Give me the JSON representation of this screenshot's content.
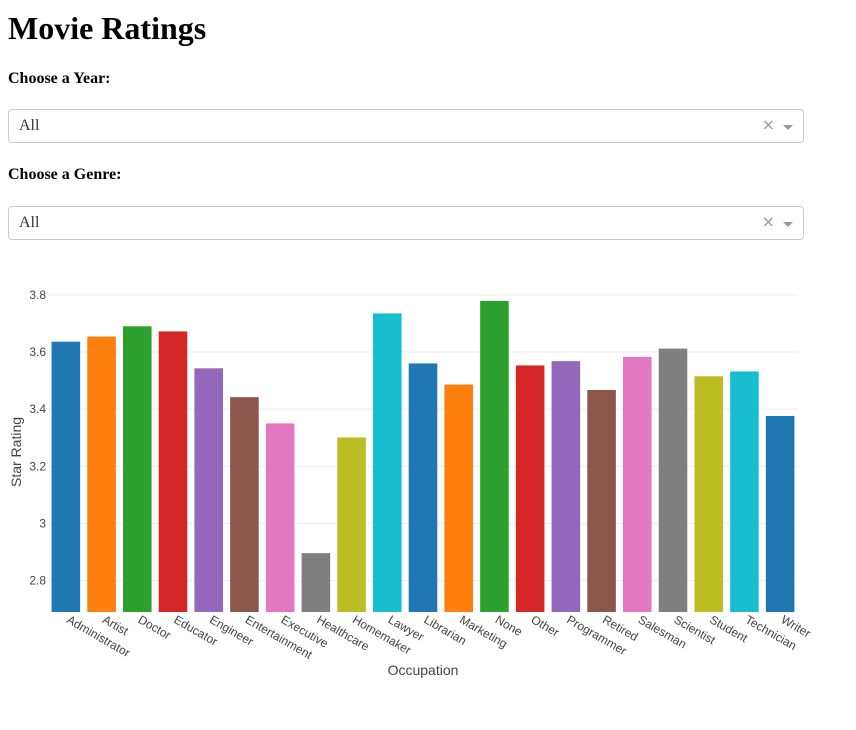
{
  "page": {
    "title": "Movie Ratings"
  },
  "filters": {
    "year": {
      "label": "Choose a Year:",
      "value": "All"
    },
    "genre": {
      "label": "Choose a Genre:",
      "value": "All"
    },
    "clear_symbol": "×"
  },
  "chart_data": {
    "type": "bar",
    "title": "",
    "xlabel": "Occupation",
    "ylabel": "Star Rating",
    "ylim": [
      2.69,
      3.81
    ],
    "yticks": [
      2.8,
      3,
      3.2,
      3.4,
      3.6,
      3.8
    ],
    "ytick_labels": [
      "2.8",
      "3",
      "3.2",
      "3.4",
      "3.6",
      "3.8"
    ],
    "grid": true,
    "categories": [
      "Administrator",
      "Artist",
      "Doctor",
      "Educator",
      "Engineer",
      "Entertainment",
      "Executive",
      "Healthcare",
      "Homemaker",
      "Lawyer",
      "Librarian",
      "Marketing",
      "None",
      "Other",
      "Programmer",
      "Retired",
      "Salesman",
      "Scientist",
      "Student",
      "Technician",
      "Writer"
    ],
    "values": [
      3.636,
      3.654,
      3.69,
      3.672,
      3.543,
      3.442,
      3.35,
      2.896,
      3.301,
      3.735,
      3.56,
      3.486,
      3.779,
      3.553,
      3.568,
      3.467,
      3.583,
      3.612,
      3.515,
      3.532,
      3.376
    ],
    "colors": [
      "#1f77b4",
      "#ff7f0e",
      "#2ca02c",
      "#d62728",
      "#9467bd",
      "#8c564b",
      "#e377c2",
      "#7f7f7f",
      "#bcbd22",
      "#17becf",
      "#1f77b4",
      "#ff7f0e",
      "#2ca02c",
      "#d62728",
      "#9467bd",
      "#8c564b",
      "#e377c2",
      "#7f7f7f",
      "#bcbd22",
      "#17becf",
      "#1f77b4"
    ]
  }
}
